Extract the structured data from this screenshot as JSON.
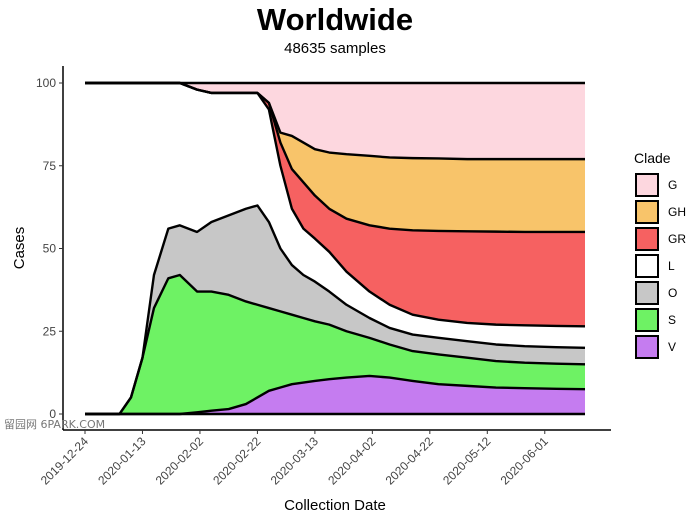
{
  "chart_data": {
    "type": "area",
    "title": "Worldwide",
    "subtitle": "48635 samples",
    "xlabel": "Collection Date",
    "ylabel": "Cases",
    "x_ticks": [
      "2019-12-24",
      "2020-01-13",
      "2020-02-02",
      "2020-02-22",
      "2020-03-13",
      "2020-04-02",
      "2020-04-22",
      "2020-05-12",
      "2020-06-01"
    ],
    "x_range": [
      "2019-12-24",
      "2020-06-15"
    ],
    "ylim": [
      0,
      100
    ],
    "y_ticks": [
      0,
      25,
      50,
      75,
      100
    ],
    "grid": false,
    "legend_title": "Clade",
    "legend_position": "right",
    "stack_order_bottom_to_top": [
      "V",
      "S",
      "O",
      "L",
      "GR",
      "GH",
      "G"
    ],
    "legend_order": [
      "G",
      "GH",
      "GR",
      "L",
      "O",
      "S",
      "V"
    ],
    "colors": {
      "G": "#fdd7df",
      "GH": "#f8c46a",
      "GR": "#f66161",
      "L": "#ffffff",
      "O": "#c7c7c7",
      "S": "#6ef264",
      "V": "#c57cf0"
    },
    "boundaries": {
      "x": [
        "2019-12-24",
        "2020-01-02",
        "2020-01-05",
        "2020-01-09",
        "2020-01-13",
        "2020-01-17",
        "2020-01-22",
        "2020-01-26",
        "2020-02-01",
        "2020-02-06",
        "2020-02-12",
        "2020-02-18",
        "2020-02-22",
        "2020-02-26",
        "2020-03-01",
        "2020-03-05",
        "2020-03-09",
        "2020-03-13",
        "2020-03-18",
        "2020-03-24",
        "2020-04-01",
        "2020-04-08",
        "2020-04-16",
        "2020-04-25",
        "2020-05-05",
        "2020-05-15",
        "2020-05-25",
        "2020-06-05",
        "2020-06-15"
      ],
      "V_top": [
        0,
        0,
        0,
        0,
        0,
        0,
        0,
        0,
        0.5,
        1,
        1.5,
        3,
        5,
        7,
        8,
        9,
        9.5,
        10,
        10.5,
        11,
        11.5,
        11,
        10,
        9,
        8.5,
        8,
        7.8,
        7.6,
        7.5
      ],
      "S_top": [
        0,
        0,
        0,
        5,
        17,
        32,
        41,
        42,
        37,
        37,
        36,
        34,
        33,
        32,
        31,
        30,
        29,
        28,
        27,
        25,
        23,
        21,
        19,
        18,
        17,
        16,
        15.5,
        15.2,
        15
      ],
      "O_top": [
        0,
        0,
        0,
        5,
        17,
        42,
        56,
        57,
        55,
        58,
        60,
        62,
        63,
        58,
        50,
        45,
        42,
        40,
        37,
        33,
        29,
        26,
        24,
        23,
        22,
        21,
        20.5,
        20.2,
        20
      ],
      "L_top": [
        100,
        100,
        100,
        100,
        100,
        100,
        100,
        100,
        98,
        97,
        97,
        97,
        97,
        92,
        75,
        62,
        56,
        53,
        49,
        43,
        37,
        33,
        30,
        28.5,
        27.5,
        27,
        26.8,
        26.6,
        26.5
      ],
      "GR_top": [
        100,
        100,
        100,
        100,
        100,
        100,
        100,
        100,
        98,
        97,
        97,
        97,
        97,
        94,
        82,
        74,
        70,
        66,
        62,
        59,
        57,
        56,
        55.5,
        55.3,
        55.2,
        55.1,
        55,
        55,
        55
      ],
      "GH_top": [
        100,
        100,
        100,
        100,
        100,
        100,
        100,
        100,
        98,
        97,
        97,
        97,
        97,
        94,
        85,
        84,
        82,
        80,
        79,
        78.5,
        78,
        77.5,
        77.3,
        77.2,
        77,
        77,
        77,
        77,
        77
      ],
      "G_top": [
        100,
        100,
        100,
        100,
        100,
        100,
        100,
        100,
        100,
        100,
        100,
        100,
        100,
        100,
        100,
        100,
        100,
        100,
        100,
        100,
        100,
        100,
        100,
        100,
        100,
        100,
        100,
        100,
        100
      ]
    }
  },
  "watermark": "留园网 6PARK.COM"
}
